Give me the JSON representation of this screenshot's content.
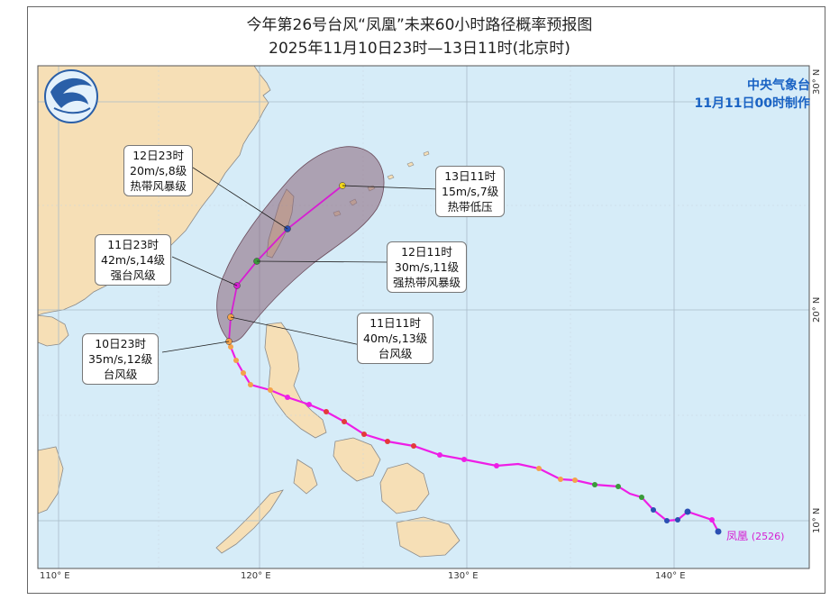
{
  "title": {
    "line1": "今年第26号台风“凤凰”未来60小时路径概率预报图",
    "line2": "2025年11月10日23时—13日11时(北京时)"
  },
  "agency": {
    "name": "中央气象台",
    "issued": "11月11日00时制作"
  },
  "storm": {
    "name": "凤凰",
    "code": "(2526)"
  },
  "forecast_points": [
    {
      "time": "10日23时",
      "wind": "35m/s,12级",
      "category": "台风级"
    },
    {
      "time": "11日11时",
      "wind": "40m/s,13级",
      "category": "台风级"
    },
    {
      "time": "11日23时",
      "wind": "42m/s,14级",
      "category": "强台风级"
    },
    {
      "time": "12日11时",
      "wind": "30m/s,11级",
      "category": "强热带风暴级"
    },
    {
      "time": "12日23时",
      "wind": "20m/s,8级",
      "category": "热带风暴级"
    },
    {
      "time": "13日11时",
      "wind": "15m/s,7级",
      "category": "热带低压"
    }
  ],
  "axes": {
    "lon_ticks": [
      "110° E",
      "120° E",
      "130° E",
      "140° E"
    ],
    "lat_ticks": [
      "30° N",
      "20° N",
      "10° N"
    ]
  },
  "colors": {
    "ocean": "#d6ecf8",
    "land": "#f6dfb6",
    "past_track": "#ee1ee6",
    "forecast_track": "#d61fd2",
    "probability_cone": "#8a6478",
    "agency_text": "#1a63c4"
  }
}
